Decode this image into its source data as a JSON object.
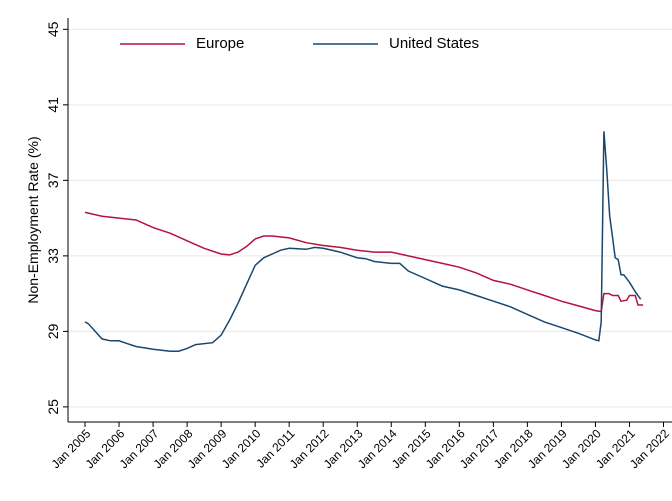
{
  "chart_data": {
    "type": "line",
    "y_label": "Non-Employment Rate (%)",
    "xlim": [
      2004.5,
      2022.25
    ],
    "xticks": [
      {
        "value": 2005,
        "label": "Jan 2005"
      },
      {
        "value": 2006,
        "label": "Jan 2006"
      },
      {
        "value": 2007,
        "label": "Jan 2007"
      },
      {
        "value": 2008,
        "label": "Jan 2008"
      },
      {
        "value": 2009,
        "label": "Jan 2009"
      },
      {
        "value": 2010,
        "label": "Jan 2010"
      },
      {
        "value": 2011,
        "label": "Jan 2011"
      },
      {
        "value": 2012,
        "label": "Jan 2012"
      },
      {
        "value": 2013,
        "label": "Jan 2013"
      },
      {
        "value": 2014,
        "label": "Jan 2014"
      },
      {
        "value": 2015,
        "label": "Jan 2015"
      },
      {
        "value": 2016,
        "label": "Jan 2016"
      },
      {
        "value": 2017,
        "label": "Jan 2017"
      },
      {
        "value": 2018,
        "label": "Jan 2018"
      },
      {
        "value": 2019,
        "label": "Jan 2019"
      },
      {
        "value": 2020,
        "label": "Jan 2020"
      },
      {
        "value": 2021,
        "label": "Jan 2021"
      },
      {
        "value": 2022,
        "label": "Jan 2022"
      }
    ],
    "ylim": [
      24.2,
      45.6
    ],
    "yticks": [
      25,
      29,
      33,
      37,
      41,
      45
    ],
    "grid": true,
    "series": [
      {
        "name": "Europe",
        "color": "#b5123c",
        "x": [
          2005,
          2005.5,
          2006,
          2006.5,
          2007,
          2007.5,
          2008,
          2008.5,
          2009,
          2009.25,
          2009.5,
          2009.75,
          2010,
          2010.25,
          2010.5,
          2011,
          2011.5,
          2012,
          2012.5,
          2013,
          2013.5,
          2014,
          2014.5,
          2015,
          2015.5,
          2016,
          2016.5,
          2017,
          2017.5,
          2018,
          2018.5,
          2019,
          2019.5,
          2020,
          2020.17,
          2020.25,
          2020.4,
          2020.5,
          2020.67,
          2020.75,
          2020.92,
          2021,
          2021.17,
          2021.25,
          2021.4
        ],
        "values": [
          35.3,
          35.1,
          35.0,
          34.9,
          34.5,
          34.2,
          33.8,
          33.4,
          33.1,
          33.05,
          33.2,
          33.5,
          33.9,
          34.05,
          34.05,
          33.95,
          33.7,
          33.55,
          33.45,
          33.3,
          33.2,
          33.2,
          33.0,
          32.8,
          32.6,
          32.4,
          32.1,
          31.7,
          31.5,
          31.2,
          30.9,
          30.6,
          30.35,
          30.1,
          30.05,
          31.0,
          31.0,
          30.9,
          30.9,
          30.6,
          30.65,
          30.9,
          30.9,
          30.4,
          30.4
        ]
      },
      {
        "name": "United States",
        "color": "#1a476f",
        "x": [
          2005,
          2005.1,
          2005.3,
          2005.5,
          2005.75,
          2006,
          2006.25,
          2006.5,
          2007,
          2007.5,
          2007.75,
          2008,
          2008.25,
          2008.75,
          2009,
          2009.25,
          2009.5,
          2009.75,
          2010,
          2010.25,
          2010.5,
          2010.75,
          2011,
          2011.5,
          2011.75,
          2012,
          2012.5,
          2013,
          2013.25,
          2013.5,
          2014,
          2014.25,
          2014.5,
          2015,
          2015.5,
          2016,
          2016.5,
          2017,
          2017.5,
          2018,
          2018.5,
          2019,
          2019.5,
          2020,
          2020.1,
          2020.17,
          2020.25,
          2020.33,
          2020.42,
          2020.5,
          2020.58,
          2020.67,
          2020.75,
          2020.83,
          2021,
          2021.17,
          2021.33
        ],
        "values": [
          29.5,
          29.4,
          29.0,
          28.6,
          28.5,
          28.5,
          28.35,
          28.2,
          28.05,
          27.95,
          27.95,
          28.1,
          28.3,
          28.4,
          28.8,
          29.6,
          30.5,
          31.5,
          32.5,
          32.9,
          33.1,
          33.3,
          33.4,
          33.35,
          33.45,
          33.4,
          33.2,
          32.9,
          32.85,
          32.7,
          32.6,
          32.6,
          32.2,
          31.8,
          31.4,
          31.2,
          30.9,
          30.6,
          30.3,
          29.9,
          29.5,
          29.2,
          28.9,
          28.55,
          28.5,
          29.5,
          39.6,
          37.6,
          35.1,
          34.0,
          32.9,
          32.8,
          32.0,
          32.0,
          31.6,
          31.1,
          30.7
        ]
      }
    ]
  }
}
